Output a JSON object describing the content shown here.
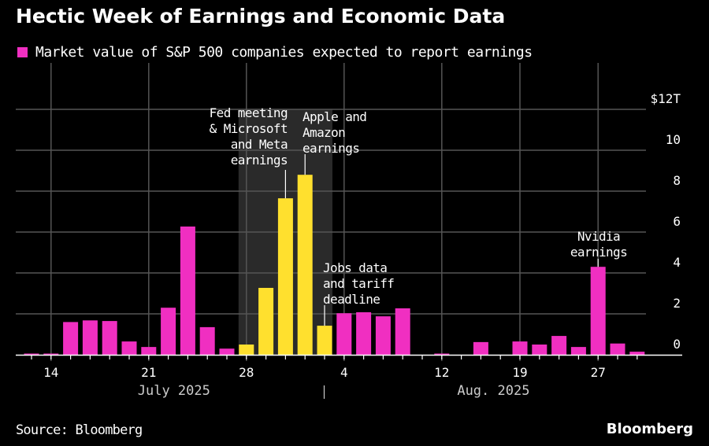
{
  "title": "Hectic Week of Earnings and Economic Data",
  "legend": {
    "label": "Market value of S&P 500 companies expected to report earnings",
    "color": "#f02fc1"
  },
  "footer": {
    "source": "Source: Bloomberg",
    "brand": "Bloomberg"
  },
  "colors": {
    "default": "#f02fc1",
    "highlight": "#ffe02e",
    "shade": "#2a2a2a",
    "grid": "#555555"
  },
  "chart_data": {
    "type": "bar",
    "title": "Hectic Week of Earnings and Economic Data",
    "xlabel": "",
    "ylabel": "",
    "y_unit_label": "$12T",
    "ylim": [
      0,
      12
    ],
    "yticks": [
      0,
      2,
      4,
      6,
      8,
      10,
      12
    ],
    "ytick_labels": [
      "0",
      "2",
      "4",
      "6",
      "8",
      "10",
      "$12T"
    ],
    "grid": true,
    "legend_position": "top-left",
    "x_tick_labels": [
      {
        "index": 1,
        "label": "14"
      },
      {
        "index": 6,
        "label": "21"
      },
      {
        "index": 11,
        "label": "28"
      },
      {
        "index": 16,
        "label": "4"
      },
      {
        "index": 21,
        "label": "12"
      },
      {
        "index": 25,
        "label": "19"
      },
      {
        "index": 29,
        "label": "27"
      }
    ],
    "month_labels": [
      {
        "label": "July 2025",
        "center_index": 6
      },
      {
        "label": "Aug. 2025",
        "center_index": 23
      }
    ],
    "month_divider_index": 15,
    "highlight_range": [
      11,
      15
    ],
    "series": [
      {
        "name": "Market value of S&P 500 companies expected to report earnings",
        "values": [
          0.05,
          0.05,
          1.6,
          1.68,
          1.65,
          0.65,
          0.38,
          2.3,
          6.27,
          1.35,
          0.3,
          0.5,
          3.27,
          7.65,
          8.8,
          1.42,
          2.03,
          2.08,
          1.88,
          2.27,
          0,
          0.05,
          0,
          0.62,
          0,
          0.65,
          0.5,
          0.92,
          0.38,
          4.3,
          0.55,
          0.15
        ],
        "highlighted": [
          11,
          12,
          13,
          14,
          15
        ]
      }
    ],
    "annotations": [
      {
        "index": 13,
        "lines": [
          "Fed meeting",
          "& Microsoft",
          "and Meta",
          "earnings"
        ],
        "align": "end"
      },
      {
        "index": 14,
        "lines": [
          "Apple and",
          "Amazon",
          "earnings"
        ],
        "align": "start"
      },
      {
        "index": 15,
        "lines": [
          "Jobs data",
          "and tariff",
          "deadline"
        ],
        "align": "start"
      },
      {
        "index": 29,
        "lines": [
          "Nvidia",
          "earnings"
        ],
        "align": "middle"
      }
    ]
  }
}
